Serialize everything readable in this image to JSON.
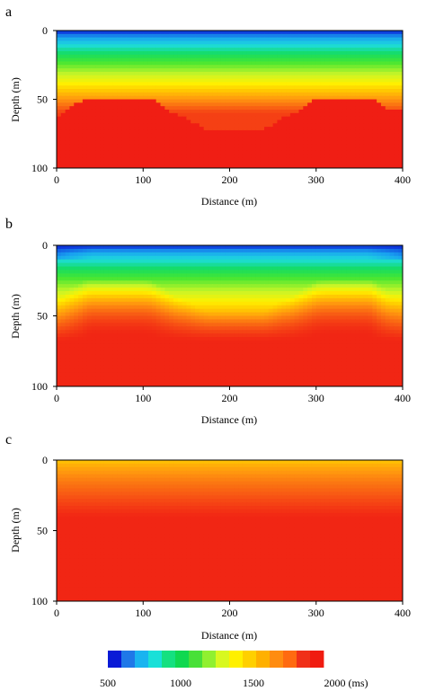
{
  "figure": {
    "panels": [
      {
        "label": "a",
        "xlabel": "Distance (m)",
        "ylabel": "Depth (m)",
        "xticks": [
          "0",
          "100",
          "200",
          "300",
          "400"
        ],
        "yticks": [
          "0",
          "50",
          "100"
        ]
      },
      {
        "label": "b",
        "xlabel": "Distance (m)",
        "ylabel": "Depth (m)",
        "xticks": [
          "0",
          "100",
          "200",
          "300",
          "400"
        ],
        "yticks": [
          "0",
          "50",
          "100"
        ]
      },
      {
        "label": "c",
        "xlabel": "Distance (m)",
        "ylabel": "Depth (m)",
        "xticks": [
          "0",
          "100",
          "200",
          "300",
          "400"
        ],
        "yticks": [
          "0",
          "50",
          "100"
        ]
      }
    ],
    "colorbar": {
      "labels": [
        "500",
        "1000",
        "1500",
        "2000 (ms)"
      ],
      "colors": [
        "#0a1ad6",
        "#1f78e8",
        "#19b4f0",
        "#19e0d8",
        "#15e080",
        "#10d850",
        "#48e038",
        "#90f030",
        "#d8f820",
        "#fff000",
        "#ffd000",
        "#ffb000",
        "#ff8c10",
        "#ff6a10",
        "#f03018",
        "#f01c10"
      ]
    }
  },
  "chart_data": [
    {
      "type": "heatmap",
      "panel": "a",
      "x": [
        0,
        400
      ],
      "y": [
        0,
        100
      ],
      "xlabel": "Distance (m)",
      "ylabel": "Depth (m)",
      "xlim": [
        0,
        400
      ],
      "ylim": [
        100,
        0
      ],
      "value_unit": "ms",
      "surface_value": 500,
      "gradient_value_at_50m": 1700,
      "lower_layer_value": 2000,
      "layer_top_depth_profile": {
        "distance": [
          0,
          5,
          10,
          20,
          35,
          70,
          100,
          110,
          120,
          130,
          140,
          150,
          160,
          175,
          240,
          250,
          260,
          270,
          280,
          290,
          300,
          310,
          320,
          340,
          365,
          375,
          385,
          400
        ],
        "depth": [
          62,
          62,
          58,
          54,
          49,
          49,
          49,
          50,
          54,
          58,
          62,
          64,
          68,
          72,
          72,
          68,
          64,
          62,
          58,
          54,
          50,
          49,
          49,
          49,
          49,
          54,
          58,
          58
        ]
      }
    },
    {
      "type": "heatmap",
      "panel": "b",
      "x": [
        0,
        400
      ],
      "y": [
        0,
        100
      ],
      "xlabel": "Distance (m)",
      "ylabel": "Depth (m)",
      "xlim": [
        0,
        400
      ],
      "ylim": [
        100,
        0
      ],
      "value_unit": "ms",
      "surface_value": 500,
      "max_value": 2000,
      "description": "Smoothed inversion of model a"
    },
    {
      "type": "heatmap",
      "panel": "c",
      "x": [
        0,
        400
      ],
      "y": [
        0,
        100
      ],
      "xlabel": "Distance (m)",
      "ylabel": "Depth (m)",
      "xlim": [
        0,
        400
      ],
      "ylim": [
        100,
        0
      ],
      "value_unit": "ms",
      "surface_value": 1550,
      "max_value": 2000,
      "description": "Nearly uniform increasing-with-depth model"
    }
  ]
}
